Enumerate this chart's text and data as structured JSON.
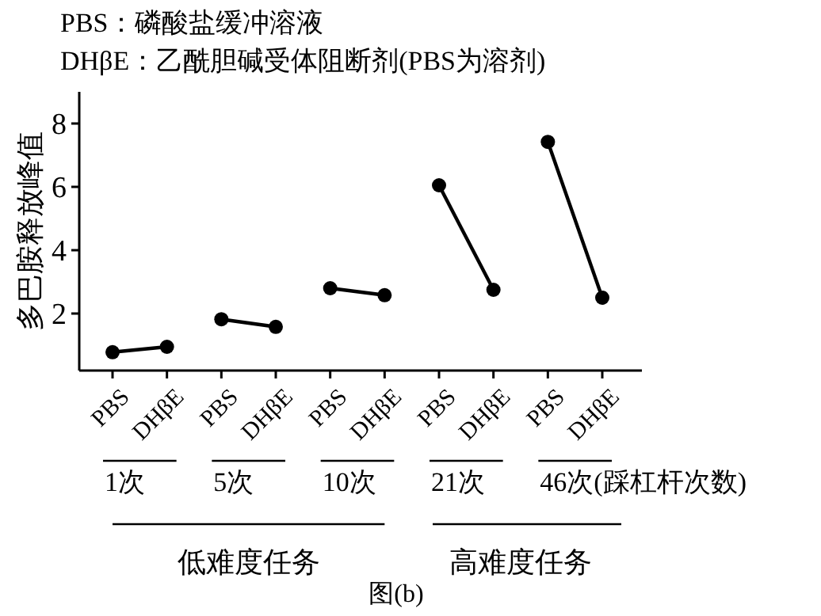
{
  "chart_data": {
    "type": "line",
    "ylabel": "多巴胺释放峰值",
    "categories": [
      "PBS",
      "DHβE",
      "PBS",
      "DHβE",
      "PBS",
      "DHβE",
      "PBS",
      "DHβE",
      "PBS",
      "DHβE"
    ],
    "series": [
      {
        "color": "#000000",
        "values": [
          0.78,
          0.95,
          null,
          null,
          null,
          null,
          null,
          null,
          null,
          null
        ]
      },
      {
        "color": "#000000",
        "values": [
          null,
          null,
          1.82,
          1.58,
          null,
          null,
          null,
          null,
          null,
          null
        ]
      },
      {
        "color": "#000000",
        "values": [
          null,
          null,
          null,
          null,
          2.8,
          2.58,
          null,
          null,
          null,
          null
        ]
      },
      {
        "color": "#000000",
        "values": [
          null,
          null,
          null,
          null,
          null,
          null,
          6.05,
          2.75,
          null,
          null
        ]
      },
      {
        "color": "#000000",
        "values": [
          null,
          null,
          null,
          null,
          null,
          null,
          null,
          null,
          7.42,
          2.5
        ]
      }
    ],
    "ylim": [
      0.2,
      9
    ],
    "yticks": [
      2,
      4,
      6,
      8
    ],
    "grid": false,
    "marker": "circle",
    "line_style": "solid",
    "annotations": [
      "PBS：磷酸盐缓冲溶液",
      "DHβE：乙酰胆碱受体阻断剂(PBS为溶剂)",
      "1次",
      "5次",
      "10次",
      "21次",
      "46次(踩杠杆次数)",
      "低难度任务",
      "高难度任务",
      "图(b)"
    ]
  }
}
